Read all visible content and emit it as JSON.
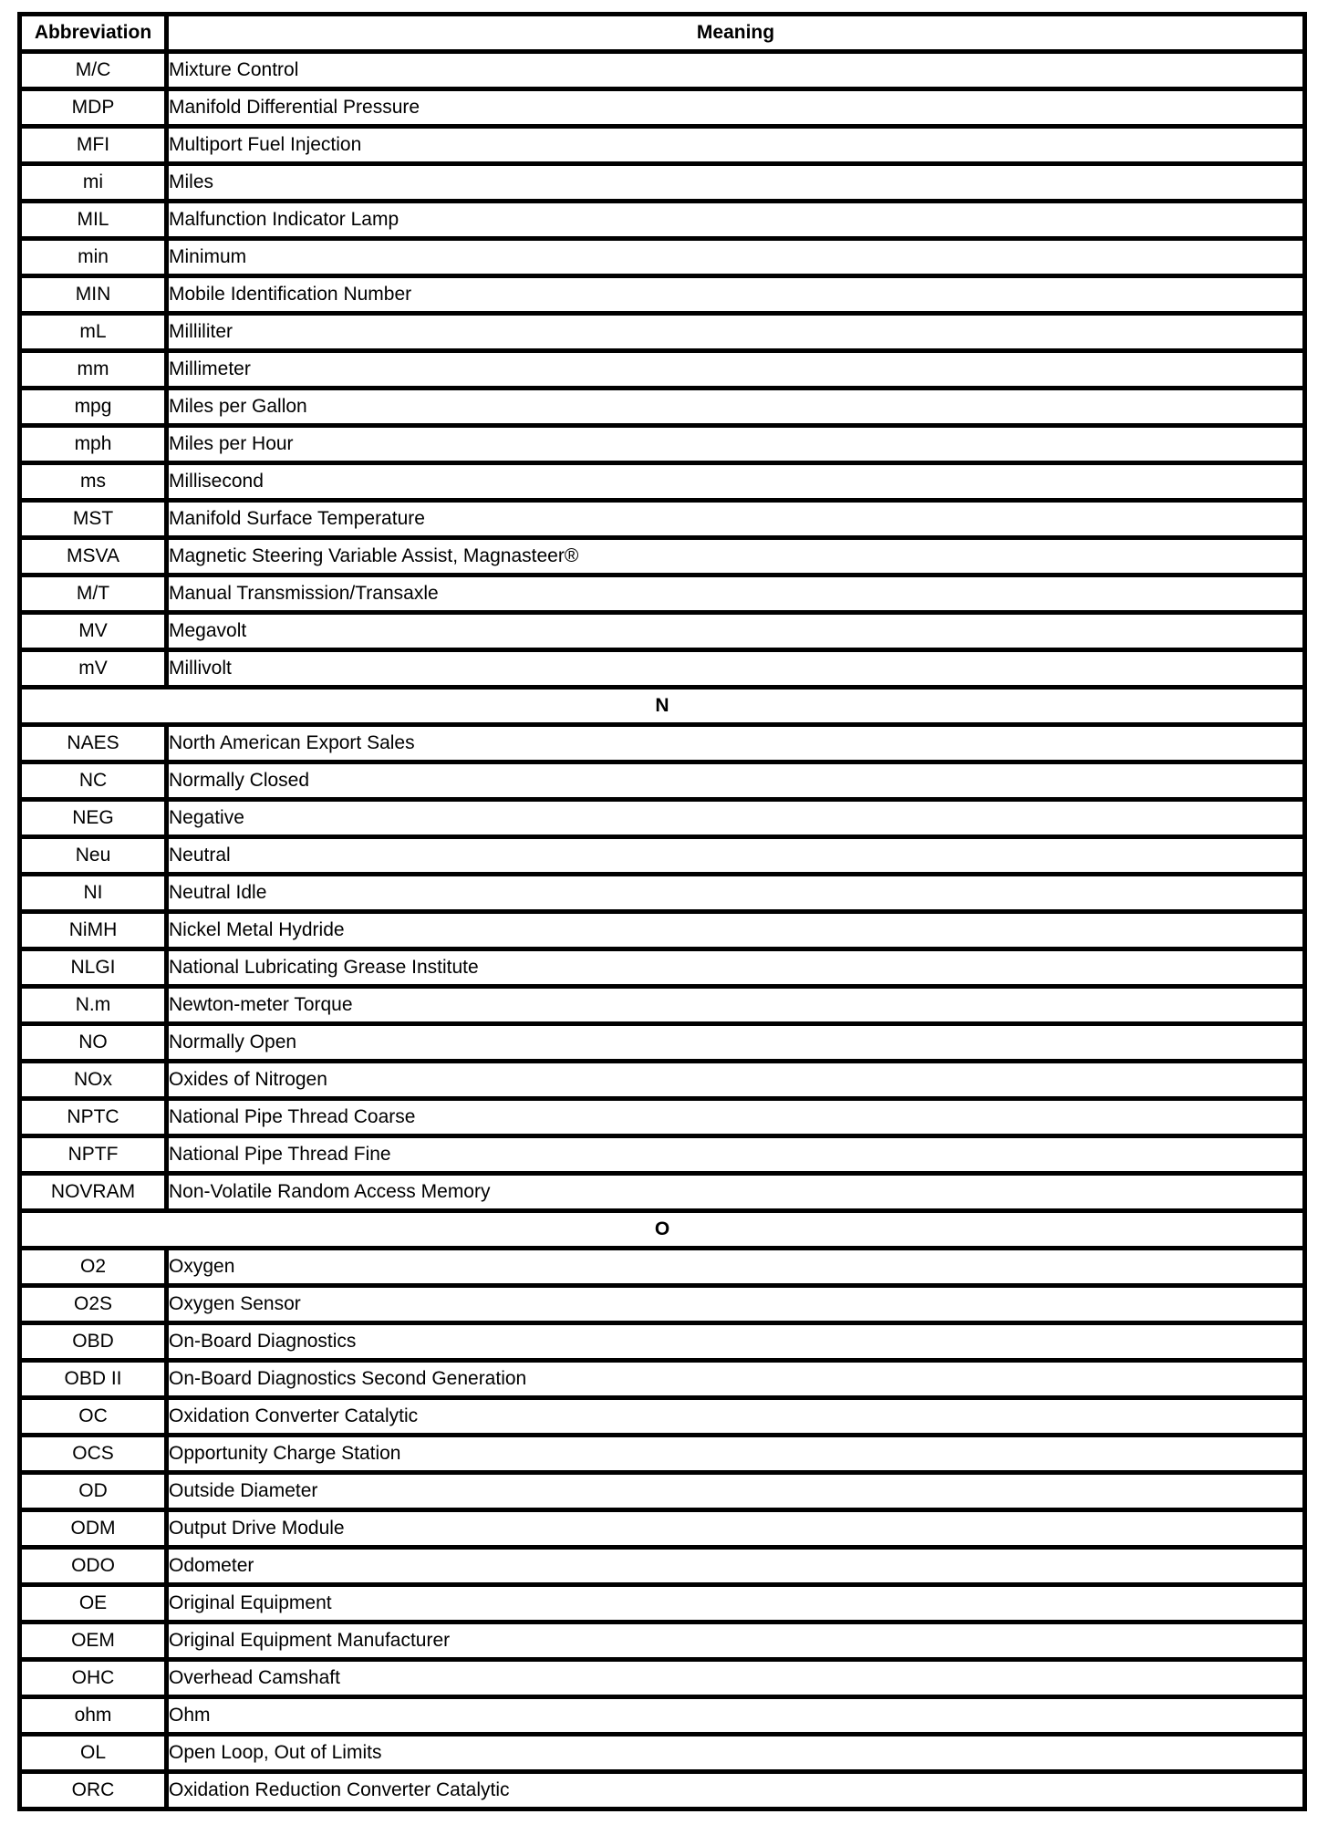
{
  "colors": {
    "background": "#ffffff",
    "text": "#000000",
    "border": "#000000"
  },
  "table": {
    "headers": {
      "abbreviation": "Abbreviation",
      "meaning": "Meaning"
    },
    "groups": [
      {
        "section": null,
        "rows": [
          {
            "abbr": "M/C",
            "meaning": "Mixture Control"
          },
          {
            "abbr": "MDP",
            "meaning": "Manifold Differential Pressure"
          },
          {
            "abbr": "MFI",
            "meaning": "Multiport Fuel Injection"
          },
          {
            "abbr": "mi",
            "meaning": "Miles"
          },
          {
            "abbr": "MIL",
            "meaning": "Malfunction Indicator Lamp"
          },
          {
            "abbr": "min",
            "meaning": "Minimum"
          },
          {
            "abbr": "MIN",
            "meaning": "Mobile Identification Number"
          },
          {
            "abbr": "mL",
            "meaning": "Milliliter"
          },
          {
            "abbr": "mm",
            "meaning": "Millimeter"
          },
          {
            "abbr": "mpg",
            "meaning": "Miles per Gallon"
          },
          {
            "abbr": "mph",
            "meaning": "Miles per Hour"
          },
          {
            "abbr": "ms",
            "meaning": "Millisecond"
          },
          {
            "abbr": "MST",
            "meaning": "Manifold Surface Temperature"
          },
          {
            "abbr": "MSVA",
            "meaning": "Magnetic Steering Variable Assist, Magnasteer®"
          },
          {
            "abbr": "M/T",
            "meaning": "Manual Transmission/Transaxle"
          },
          {
            "abbr": "MV",
            "meaning": "Megavolt"
          },
          {
            "abbr": "mV",
            "meaning": "Millivolt"
          }
        ]
      },
      {
        "section": "N",
        "rows": [
          {
            "abbr": "NAES",
            "meaning": "North American Export Sales"
          },
          {
            "abbr": "NC",
            "meaning": "Normally Closed"
          },
          {
            "abbr": "NEG",
            "meaning": "Negative"
          },
          {
            "abbr": "Neu",
            "meaning": "Neutral"
          },
          {
            "abbr": "NI",
            "meaning": "Neutral Idle"
          },
          {
            "abbr": "NiMH",
            "meaning": "Nickel Metal Hydride"
          },
          {
            "abbr": "NLGI",
            "meaning": "National Lubricating Grease Institute"
          },
          {
            "abbr": "N.m",
            "meaning": "Newton-meter Torque"
          },
          {
            "abbr": "NO",
            "meaning": "Normally Open"
          },
          {
            "abbr": "NOx",
            "meaning": "Oxides of Nitrogen"
          },
          {
            "abbr": "NPTC",
            "meaning": "National Pipe Thread Coarse"
          },
          {
            "abbr": "NPTF",
            "meaning": "National Pipe Thread Fine"
          },
          {
            "abbr": "NOVRAM",
            "meaning": "Non-Volatile Random Access Memory"
          }
        ]
      },
      {
        "section": "O",
        "rows": [
          {
            "abbr": "O2",
            "meaning": "Oxygen"
          },
          {
            "abbr": "O2S",
            "meaning": "Oxygen Sensor"
          },
          {
            "abbr": "OBD",
            "meaning": "On-Board Diagnostics"
          },
          {
            "abbr": "OBD II",
            "meaning": "On-Board Diagnostics Second Generation"
          },
          {
            "abbr": "OC",
            "meaning": "Oxidation Converter Catalytic"
          },
          {
            "abbr": "OCS",
            "meaning": "Opportunity Charge Station"
          },
          {
            "abbr": "OD",
            "meaning": "Outside Diameter"
          },
          {
            "abbr": "ODM",
            "meaning": "Output Drive Module"
          },
          {
            "abbr": "ODO",
            "meaning": "Odometer"
          },
          {
            "abbr": "OE",
            "meaning": "Original Equipment"
          },
          {
            "abbr": "OEM",
            "meaning": "Original Equipment Manufacturer"
          },
          {
            "abbr": "OHC",
            "meaning": "Overhead Camshaft"
          },
          {
            "abbr": "ohm",
            "meaning": "Ohm"
          },
          {
            "abbr": "OL",
            "meaning": "Open Loop, Out of Limits"
          },
          {
            "abbr": "ORC",
            "meaning": "Oxidation Reduction Converter Catalytic"
          }
        ]
      }
    ]
  }
}
